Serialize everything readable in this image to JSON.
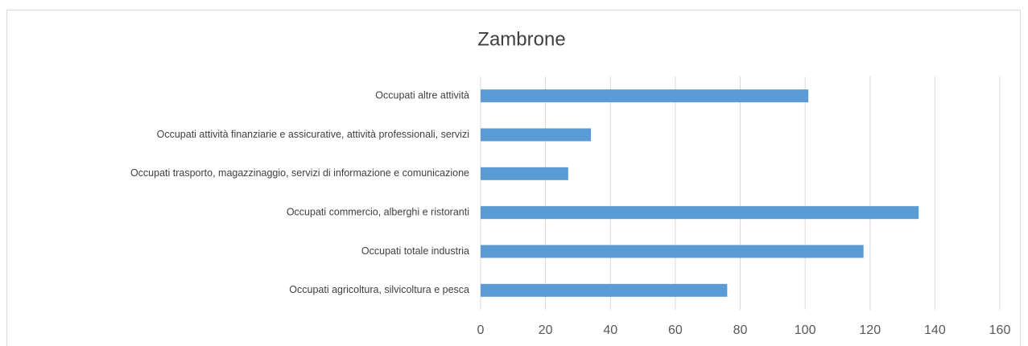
{
  "chart_data": {
    "type": "bar",
    "orientation": "horizontal",
    "title": "Zambrone",
    "categories": [
      "Occupati altre attività",
      "Occupati attività finanziarie e assicurative, attività professionali, servizi",
      "Occupati trasporto, magazzinaggio, servizi di informazione e comunicazione",
      "Occupati commercio, alberghi e ristoranti",
      "Occupati totale industria",
      "Occupati agricoltura, silvicoltura e pesca"
    ],
    "values": [
      101,
      34,
      27,
      135,
      118,
      76
    ],
    "color": "#5b9bd5",
    "xlim": [
      0,
      160
    ],
    "xticks": [
      0,
      20,
      40,
      60,
      80,
      100,
      120,
      140,
      160
    ],
    "grid": true
  }
}
